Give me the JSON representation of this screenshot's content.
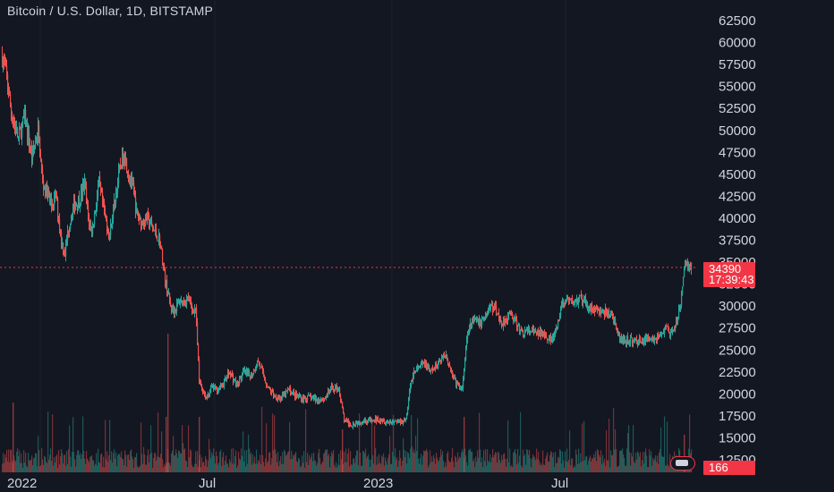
{
  "header": {
    "title": "Bitcoin / U.S. Dollar, 1D, BITSTAMP"
  },
  "price_tag": {
    "price": "34390",
    "countdown": "17:39:43",
    "color": "#f23645"
  },
  "volume_tag": {
    "value": "166",
    "color": "#f23645"
  },
  "colors": {
    "background": "#131722",
    "up": "#26a69a",
    "down": "#ef5350",
    "grid": "#1e222d",
    "text": "#d1d4dc"
  },
  "chart_data": {
    "type": "candlestick",
    "title": "Bitcoin / U.S. Dollar, 1D, BITSTAMP",
    "y_ticks": [
      12500,
      15000,
      17500,
      20000,
      22500,
      25000,
      27500,
      30000,
      32500,
      35000,
      37500,
      40000,
      42500,
      45000,
      47500,
      50000,
      52500,
      55000,
      57500,
      60000,
      62500
    ],
    "ylim": [
      12000,
      63500
    ],
    "x_ticks": [
      "2022",
      "Jul",
      "2023",
      "Jul"
    ],
    "last_price": 34390,
    "grid": "vertical only",
    "series": [
      {
        "name": "",
        "close_path": [
          [
            0,
            58500
          ],
          [
            5,
            56000
          ],
          [
            10,
            52000
          ],
          [
            18,
            49000
          ],
          [
            25,
            51500
          ],
          [
            33,
            47000
          ],
          [
            40,
            50000
          ],
          [
            45,
            44000
          ],
          [
            50,
            43000
          ],
          [
            55,
            41500
          ],
          [
            60,
            42500
          ],
          [
            66,
            37500
          ],
          [
            70,
            36000
          ],
          [
            74,
            39000
          ],
          [
            80,
            41500
          ],
          [
            86,
            42000
          ],
          [
            92,
            44000
          ],
          [
            96,
            40000
          ],
          [
            100,
            38500
          ],
          [
            104,
            41000
          ],
          [
            108,
            44000
          ],
          [
            114,
            40500
          ],
          [
            120,
            38000
          ],
          [
            124,
            41000
          ],
          [
            128,
            43500
          ],
          [
            132,
            46000
          ],
          [
            136,
            47500
          ],
          [
            140,
            45500
          ],
          [
            146,
            43500
          ],
          [
            150,
            40500
          ],
          [
            156,
            39500
          ],
          [
            162,
            40000
          ],
          [
            168,
            38800
          ],
          [
            176,
            37500
          ],
          [
            182,
            33000
          ],
          [
            188,
            30000
          ],
          [
            192,
            29500
          ],
          [
            198,
            30500
          ],
          [
            204,
            30500
          ],
          [
            208,
            31000
          ],
          [
            212,
            29500
          ],
          [
            216,
            29800
          ],
          [
            220,
            21500
          ],
          [
            224,
            20500
          ],
          [
            228,
            19500
          ],
          [
            234,
            20800
          ],
          [
            240,
            20500
          ],
          [
            246,
            21000
          ],
          [
            254,
            22500
          ],
          [
            262,
            21000
          ],
          [
            270,
            22500
          ],
          [
            278,
            22000
          ],
          [
            286,
            23800
          ],
          [
            292,
            22000
          ],
          [
            298,
            20500
          ],
          [
            304,
            19800
          ],
          [
            312,
            19500
          ],
          [
            320,
            20500
          ],
          [
            328,
            19800
          ],
          [
            336,
            19500
          ],
          [
            344,
            19600
          ],
          [
            352,
            19300
          ],
          [
            360,
            19500
          ],
          [
            368,
            20600
          ],
          [
            376,
            20700
          ],
          [
            382,
            17000
          ],
          [
            390,
            16500
          ],
          [
            398,
            16800
          ],
          [
            406,
            17000
          ],
          [
            414,
            16900
          ],
          [
            422,
            17200
          ],
          [
            430,
            16800
          ],
          [
            440,
            16900
          ],
          [
            448,
            16900
          ],
          [
            452,
            17500
          ],
          [
            456,
            21000
          ],
          [
            460,
            22500
          ],
          [
            466,
            23000
          ],
          [
            472,
            23500
          ],
          [
            478,
            22500
          ],
          [
            484,
            23000
          ],
          [
            490,
            24000
          ],
          [
            496,
            24500
          ],
          [
            502,
            22500
          ],
          [
            508,
            21000
          ],
          [
            514,
            20500
          ],
          [
            518,
            25500
          ],
          [
            522,
            28000
          ],
          [
            528,
            28300
          ],
          [
            534,
            28000
          ],
          [
            540,
            29000
          ],
          [
            546,
            30000
          ],
          [
            552,
            29500
          ],
          [
            558,
            28000
          ],
          [
            564,
            28800
          ],
          [
            570,
            29000
          ],
          [
            576,
            27500
          ],
          [
            582,
            27000
          ],
          [
            590,
            27200
          ],
          [
            598,
            26800
          ],
          [
            606,
            27000
          ],
          [
            614,
            26000
          ],
          [
            620,
            27500
          ],
          [
            626,
            30500
          ],
          [
            632,
            30400
          ],
          [
            640,
            30500
          ],
          [
            646,
            30800
          ],
          [
            652,
            30200
          ],
          [
            658,
            29800
          ],
          [
            664,
            29500
          ],
          [
            670,
            29300
          ],
          [
            676,
            29200
          ],
          [
            682,
            29000
          ],
          [
            688,
            26500
          ],
          [
            694,
            26000
          ],
          [
            700,
            26200
          ],
          [
            706,
            25900
          ],
          [
            712,
            26200
          ],
          [
            718,
            26000
          ],
          [
            724,
            26500
          ],
          [
            730,
            26300
          ],
          [
            736,
            26800
          ],
          [
            742,
            27500
          ],
          [
            746,
            27000
          ],
          [
            750,
            26800
          ],
          [
            754,
            28500
          ],
          [
            758,
            30000
          ],
          [
            761,
            33500
          ],
          [
            764,
            35000
          ],
          [
            767,
            34500
          ],
          [
            770,
            34390
          ]
        ]
      }
    ]
  }
}
